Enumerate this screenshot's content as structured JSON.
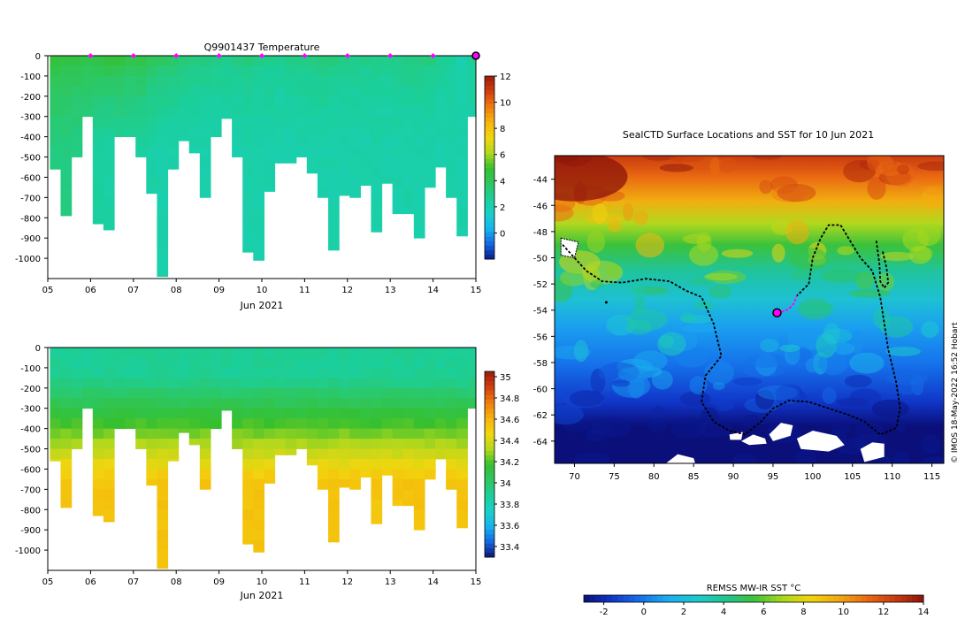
{
  "colors": {
    "temp_ramp": [
      "#081d8a",
      "#1565e0",
      "#16b4ee",
      "#19d0c8",
      "#1bcf9c",
      "#2ec760",
      "#36c02f",
      "#b5d81c",
      "#f2d60f",
      "#f5b50b",
      "#ee7c10",
      "#d23e0e",
      "#9b1d0a"
    ],
    "sal_ramp": [
      "#0b1570",
      "#1565e0",
      "#16b4ee",
      "#19d0c8",
      "#1bcf9c",
      "#2ec760",
      "#36c02f",
      "#b5d81c",
      "#f2d60f",
      "#f5b50b",
      "#ee7c10",
      "#d23e0e",
      "#9b1d0a"
    ],
    "sst_ramp": [
      "#0a0f7a",
      "#1036c8",
      "#1571ea",
      "#1aaef0",
      "#1ec9cc",
      "#1fc490",
      "#3bc23b",
      "#a8d81e",
      "#f0d40c",
      "#f3a810",
      "#ea6a12",
      "#c93a0f",
      "#8c140a"
    ],
    "track": "#000000",
    "marker": "#ff00ff",
    "land": "#ffffff"
  },
  "credit": "© IMOS 18-May-2022 16:52 Hobart",
  "chart_data": [
    {
      "type": "heatmap",
      "title": "Q9901437  Temperature",
      "xlabel": "Jun 2021",
      "ylabel": "",
      "xticks": [
        "05",
        "06",
        "07",
        "08",
        "09",
        "10",
        "11",
        "12",
        "13",
        "14",
        "15"
      ],
      "xlim": [
        5,
        15
      ],
      "ylim": [
        -1100,
        0
      ],
      "yticks": [
        0,
        -100,
        -200,
        -300,
        -400,
        -500,
        -600,
        -700,
        -800,
        -900,
        -1000
      ],
      "ytick_labels": [
        "0",
        "-100",
        "-200",
        "-300",
        "-400",
        "-500",
        "-600",
        "-700",
        "-800",
        "-900",
        "-1000"
      ],
      "colorbar": {
        "min": -2,
        "max": 12,
        "ticks": [
          "12",
          "10",
          "8",
          "6",
          "4",
          "2",
          "0"
        ]
      },
      "profile_markers_day": [
        6,
        7,
        8,
        9,
        10,
        11,
        12,
        13,
        14
      ],
      "latest_profile_day": 15,
      "profiles": {
        "days": [
          5.05,
          5.3,
          5.55,
          5.8,
          6.05,
          6.3,
          6.55,
          6.8,
          7.05,
          7.3,
          7.55,
          7.8,
          8.05,
          8.3,
          8.55,
          8.8,
          9.05,
          9.3,
          9.55,
          9.8,
          10.05,
          10.3,
          10.55,
          10.8,
          11.05,
          11.3,
          11.55,
          11.8,
          12.05,
          12.3,
          12.55,
          12.8,
          13.05,
          13.3,
          13.55,
          13.8,
          14.05,
          14.3,
          14.55,
          14.8
        ],
        "max_depth": [
          -560,
          -790,
          -500,
          -300,
          -830,
          -860,
          -400,
          -400,
          -500,
          -680,
          -1090,
          -560,
          -420,
          -480,
          -700,
          -400,
          -310,
          -500,
          -970,
          -1010,
          -670,
          -530,
          -530,
          -500,
          -580,
          -700,
          -960,
          -690,
          -700,
          -640,
          -870,
          -630,
          -780,
          -780,
          -900,
          -650,
          -550,
          -700,
          -890,
          -300
        ],
        "surface_temp": [
          4.6,
          4.4,
          4.4,
          4.2,
          4.4,
          4.6,
          4.6,
          4.2,
          4.3,
          4.0,
          3.8,
          3.7,
          3.4,
          3.3,
          3.2,
          3.0,
          3.0,
          3.1,
          3.3,
          3.1,
          3.0,
          2.9,
          3.0,
          3.1,
          3.2,
          3.3,
          3.2,
          3.1,
          3.0,
          3.0,
          3.0,
          2.9,
          3.1,
          3.2,
          3.2,
          3.2,
          2.8,
          2.6,
          2.2,
          2.8
        ],
        "deep_temp": [
          3.2,
          3.2,
          3.1,
          3.0,
          2.6,
          2.5,
          2.6,
          2.6,
          2.6,
          2.4,
          2.3,
          2.3,
          2.3,
          2.3,
          2.3,
          2.3,
          2.3,
          2.3,
          2.3,
          2.3,
          2.3,
          2.3,
          2.3,
          2.3,
          2.3,
          2.3,
          2.3,
          2.3,
          2.3,
          2.3,
          2.3,
          2.3,
          2.3,
          2.3,
          2.3,
          2.3,
          2.3,
          2.3,
          2.3,
          2.3
        ]
      }
    },
    {
      "type": "heatmap",
      "title": "",
      "xlabel": "Jun 2021",
      "ylabel": "",
      "xticks": [
        "05",
        "06",
        "07",
        "08",
        "09",
        "10",
        "11",
        "12",
        "13",
        "14",
        "15"
      ],
      "xlim": [
        5,
        15
      ],
      "ylim": [
        -1100,
        0
      ],
      "yticks": [
        0,
        -100,
        -200,
        -300,
        -400,
        -500,
        -600,
        -700,
        -800,
        -900,
        -1000
      ],
      "ytick_labels": [
        "0",
        "-100",
        "-200",
        "-300",
        "-400",
        "-500",
        "-600",
        "-700",
        "-800",
        "-900",
        "-1000"
      ],
      "colorbar": {
        "min": 33.3,
        "max": 35.05,
        "ticks": [
          "35",
          "34.8",
          "34.6",
          "34.4",
          "34.2",
          "34",
          "33.8",
          "33.6",
          "33.4"
        ]
      },
      "profiles": {
        "surface_sal": 33.9,
        "deep_sal": 34.55
      }
    },
    {
      "type": "heatmap",
      "title": "SealCTD Surface Locations and SST for 10 Jun 2021",
      "xlabel": "",
      "ylabel": "",
      "xlim": [
        67.5,
        116.5
      ],
      "ylim": [
        -65.7,
        -42.2
      ],
      "xticks": [
        "70",
        "75",
        "80",
        "85",
        "90",
        "95",
        "100",
        "105",
        "110",
        "115"
      ],
      "yticks": [
        "-44",
        "-46",
        "-48",
        "-50",
        "-52",
        "-54",
        "-56",
        "-58",
        "-60",
        "-62",
        "-64"
      ],
      "colorbar": {
        "label": "REMSS MW-IR SST °C",
        "min": -3,
        "max": 14,
        "ticks": [
          "-2",
          "0",
          "2",
          "4",
          "6",
          "8",
          "10",
          "12",
          "14"
        ]
      },
      "current_position": {
        "lon": 95.5,
        "lat": -54.2
      },
      "recent_track": [
        [
          95.5,
          -54.2
        ],
        [
          96.2,
          -54.1
        ],
        [
          97.0,
          -53.9
        ],
        [
          97.6,
          -53.5
        ],
        [
          98.0,
          -52.9
        ]
      ],
      "track": [
        [
          68.5,
          -49.0
        ],
        [
          70.0,
          -50.0
        ],
        [
          71.5,
          -51.0
        ],
        [
          73.5,
          -51.8
        ],
        [
          76.0,
          -51.9
        ],
        [
          79.0,
          -51.6
        ],
        [
          82.0,
          -51.8
        ],
        [
          84.0,
          -52.5
        ],
        [
          86.0,
          -53.0
        ],
        [
          87.5,
          -55.0
        ],
        [
          88.5,
          -57.5
        ],
        [
          86.5,
          -59.0
        ],
        [
          86.0,
          -61.0
        ],
        [
          87.5,
          -62.5
        ],
        [
          89.5,
          -63.2
        ],
        [
          91.5,
          -63.5
        ],
        [
          93.5,
          -62.5
        ],
        [
          95.0,
          -61.5
        ],
        [
          97.0,
          -60.9
        ],
        [
          99.5,
          -61.0
        ],
        [
          102.0,
          -61.5
        ],
        [
          104.5,
          -62.0
        ],
        [
          106.5,
          -62.5
        ],
        [
          108.5,
          -63.5
        ],
        [
          110.5,
          -63.0
        ],
        [
          111.0,
          -61.5
        ],
        [
          110.5,
          -59.5
        ],
        [
          109.5,
          -57.0
        ],
        [
          109.0,
          -55.0
        ],
        [
          108.5,
          -53.0
        ],
        [
          107.5,
          -51.0
        ],
        [
          106.0,
          -50.0
        ],
        [
          104.5,
          -48.5
        ],
        [
          103.5,
          -47.5
        ],
        [
          102.0,
          -47.5
        ],
        [
          101.0,
          -48.5
        ],
        [
          100.0,
          -50.0
        ],
        [
          99.5,
          -52.0
        ],
        [
          98.0,
          -52.9
        ]
      ],
      "side_track": [
        [
          108.0,
          -48.7
        ],
        [
          108.4,
          -50.5
        ],
        [
          108.5,
          -51.8
        ],
        [
          109.0,
          -52.3
        ],
        [
          109.5,
          -51.9
        ],
        [
          109.3,
          -50.8
        ],
        [
          108.8,
          -49.5
        ]
      ],
      "land_patches": [
        [
          [
            89.5,
            -63.5
          ],
          [
            91.2,
            -63.3
          ],
          [
            91.0,
            -63.9
          ],
          [
            89.6,
            -63.9
          ]
        ],
        [
          [
            91.0,
            -64.0
          ],
          [
            92.5,
            -63.5
          ],
          [
            94.0,
            -63.8
          ],
          [
            94.2,
            -64.2
          ],
          [
            92.0,
            -64.3
          ]
        ],
        [
          [
            94.5,
            -63.5
          ],
          [
            96.0,
            -62.6
          ],
          [
            97.5,
            -62.8
          ],
          [
            97.2,
            -63.6
          ],
          [
            95.0,
            -64.0
          ]
        ],
        [
          [
            98.0,
            -63.8
          ],
          [
            100.0,
            -63.2
          ],
          [
            103.0,
            -63.6
          ],
          [
            104.0,
            -64.3
          ],
          [
            102.0,
            -64.8
          ],
          [
            98.5,
            -64.6
          ]
        ],
        [
          [
            81.5,
            -65.7
          ],
          [
            83.0,
            -65.0
          ],
          [
            85.0,
            -65.3
          ],
          [
            85.2,
            -65.7
          ]
        ],
        [
          [
            106.0,
            -64.6
          ],
          [
            107.5,
            -64.1
          ],
          [
            109.0,
            -64.2
          ],
          [
            109.0,
            -65.2
          ],
          [
            106.5,
            -65.6
          ]
        ]
      ],
      "ice_patch": [
        [
          68.3,
          -48.5
        ],
        [
          70.5,
          -48.8
        ],
        [
          70.0,
          -50.0
        ],
        [
          68.3,
          -49.8
        ]
      ]
    }
  ]
}
